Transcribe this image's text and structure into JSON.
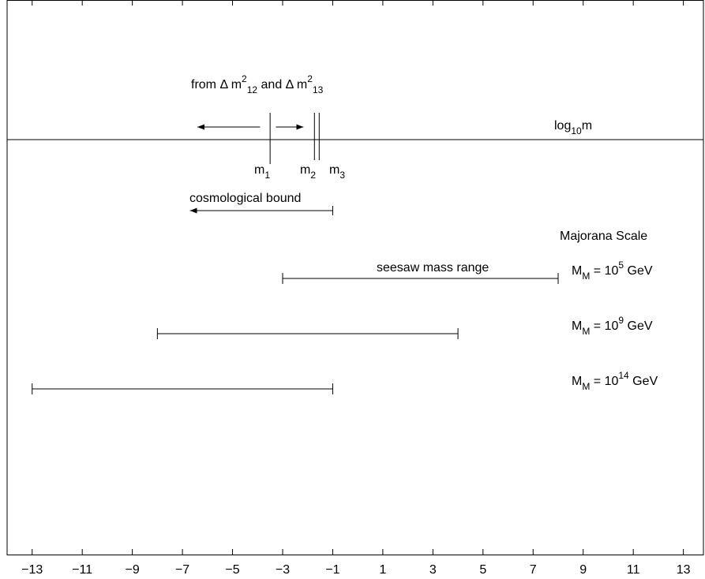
{
  "chart_data": {
    "type": "range",
    "xlim": [
      -14,
      13.8
    ],
    "xticks": [
      {
        "value": -13,
        "label": "−13"
      },
      {
        "value": -11,
        "label": "−11"
      },
      {
        "value": -9,
        "label": "−9"
      },
      {
        "value": -7,
        "label": "−7"
      },
      {
        "value": -5,
        "label": "−5"
      },
      {
        "value": -3,
        "label": "−3"
      },
      {
        "value": -1,
        "label": "−1"
      },
      1,
      3,
      5,
      7,
      9,
      11,
      13
    ],
    "axis_label": [
      {
        "t": "log"
      },
      {
        "sub": "10"
      },
      {
        "t": "m"
      }
    ],
    "title": [
      {
        "t": "from Δ m"
      },
      {
        "sup": "2"
      },
      {
        "sub": "12"
      },
      {
        "t": " and Δ m"
      },
      {
        "sup": "2"
      },
      {
        "sub": "13"
      }
    ],
    "masses": [
      {
        "label": [
          {
            "t": "m"
          },
          {
            "sub": "1"
          }
        ],
        "value": -3.5
      },
      {
        "label": [
          {
            "t": "m"
          },
          {
            "sub": "2"
          }
        ],
        "value": -1.73
      },
      {
        "label": [
          {
            "t": "m"
          },
          {
            "sub": "3"
          }
        ],
        "value": -1.54
      }
    ],
    "delta_arrows": [
      {
        "from": -3.9,
        "to": -6.4
      },
      {
        "from": -3.27,
        "to": -2.17
      }
    ],
    "bound": {
      "label": "cosmological bound",
      "value": -1,
      "end": -6.7
    },
    "legend_title": "Majorana Scale",
    "range_label": "seesaw mass range",
    "ranges": [
      {
        "label": [
          {
            "t": "M"
          },
          {
            "sub": "M"
          },
          {
            "t": " = 10"
          },
          {
            "sup": "5"
          },
          {
            "t": " GeV"
          }
        ],
        "lo": -3,
        "hi": 8
      },
      {
        "label": [
          {
            "t": "M"
          },
          {
            "sub": "M"
          },
          {
            "t": " = 10"
          },
          {
            "sup": "9"
          },
          {
            "t": " GeV"
          }
        ],
        "lo": -8,
        "hi": 4
      },
      {
        "label": [
          {
            "t": "M"
          },
          {
            "sub": "M"
          },
          {
            "t": " = 10"
          },
          {
            "sup": "14"
          },
          {
            "t": " GeV"
          }
        ],
        "lo": -13,
        "hi": -1
      }
    ]
  }
}
